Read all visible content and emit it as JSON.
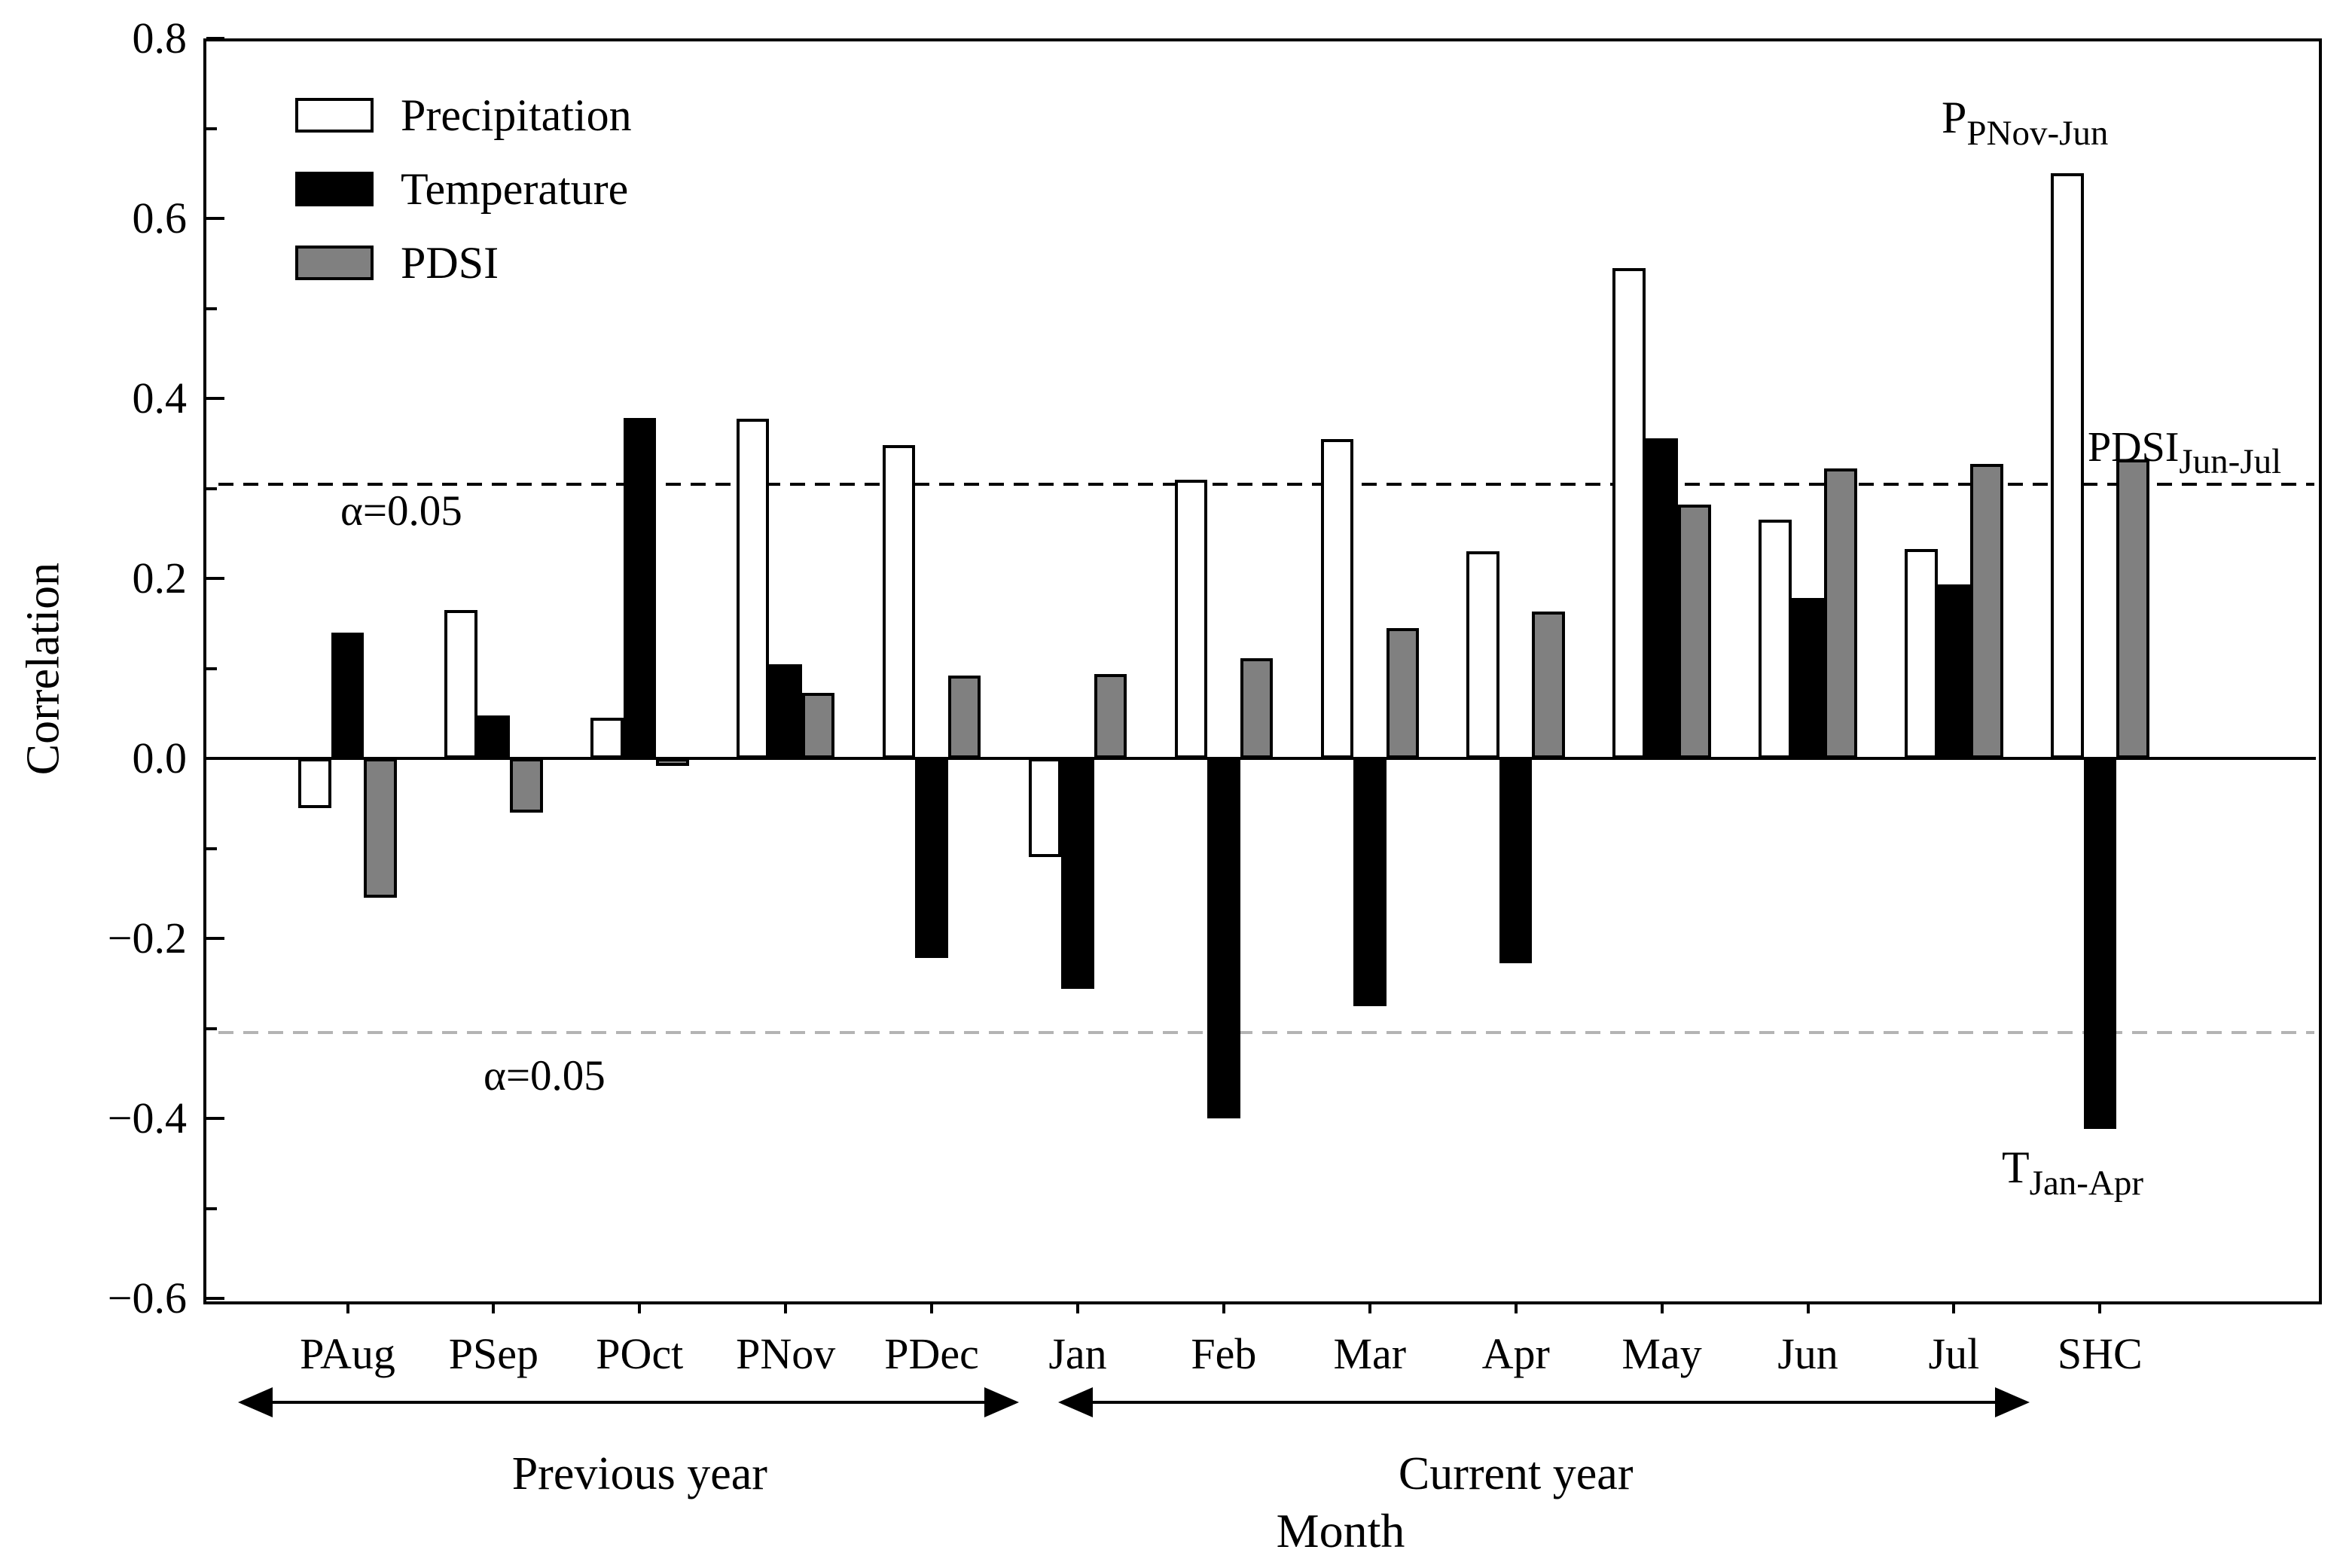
{
  "figure": {
    "ylabel": "Correlation",
    "xlabel": "Month",
    "legend": [
      {
        "label": "Precipitation",
        "color": "#ffffff"
      },
      {
        "label": "Temperature",
        "color": "#000000"
      },
      {
        "label": "PDSI",
        "color": "#808080"
      }
    ],
    "alpha_label_upper": "α=0.05",
    "alpha_label_lower": "α=0.05",
    "annotations": {
      "precip": {
        "main": "P",
        "sub": "PNov-Jun"
      },
      "pdsi": {
        "main": "PDSI",
        "sub": "Jun-Jul"
      },
      "temp": {
        "main": "T",
        "sub": "Jan-Apr"
      }
    },
    "axis_arrows": [
      {
        "label": "Previous year",
        "from": "PAug",
        "to": "PDec"
      },
      {
        "label": "Current year",
        "from": "Jan",
        "to": "Jul"
      }
    ]
  },
  "chart_data": {
    "type": "bar",
    "title": "",
    "xlabel": "Month",
    "ylabel": "Correlation",
    "ylim": [
      -0.6,
      0.8
    ],
    "ytick_step_major": 0.2,
    "ytick_step_minor": 0.1,
    "ytick_labels": [
      "0.8",
      "0.6",
      "0.4",
      "0.2",
      "0.0",
      "−0.2",
      "−0.4",
      "−0.6"
    ],
    "grid": false,
    "legend_position": "top-left",
    "categories": [
      "PAug",
      "PSep",
      "POct",
      "PNov",
      "PDec",
      "Jan",
      "Feb",
      "Mar",
      "Apr",
      "May",
      "Jun",
      "Jul",
      "SHC"
    ],
    "series": [
      {
        "name": "Precipitation",
        "color": "#ffffff",
        "values": [
          -0.055,
          0.165,
          0.045,
          0.377,
          0.348,
          -0.11,
          0.31,
          0.355,
          0.23,
          0.545,
          0.265,
          0.233,
          0.65
        ]
      },
      {
        "name": "Temperature",
        "color": "#000000",
        "values": [
          0.14,
          0.048,
          0.378,
          0.105,
          -0.222,
          -0.256,
          -0.4,
          -0.275,
          -0.228,
          0.356,
          0.178,
          0.193,
          -0.412
        ]
      },
      {
        "name": "PDSI",
        "color": "#808080",
        "values": [
          -0.155,
          -0.06,
          -0.008,
          0.073,
          0.092,
          0.094,
          0.111,
          0.145,
          0.163,
          0.282,
          0.322,
          0.327,
          0.332
        ]
      }
    ],
    "significance_lines": [
      {
        "value": 0.305,
        "label": "α=0.05",
        "style": "black-dashed"
      },
      {
        "value": -0.305,
        "label": "α=0.05",
        "style": "gray-dashed"
      }
    ],
    "group_arrows": [
      {
        "label": "Previous year",
        "from_index": 0,
        "to_index": 4
      },
      {
        "label": "Current year",
        "from_index": 5,
        "to_index": 11
      }
    ]
  }
}
